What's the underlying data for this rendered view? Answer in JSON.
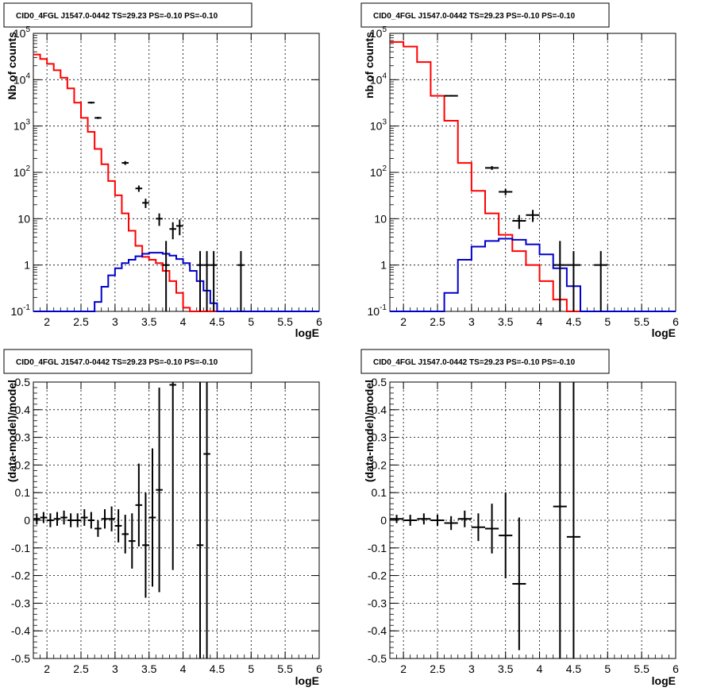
{
  "panels": [
    {
      "title": "CID0_4FGL J1547.0-0442 TS=29.23 PS=-0.10 PS=-0.10",
      "ylabel": "Nb of counts",
      "xlabel": "logE"
    },
    {
      "title": "CID0_4FGL J1547.0-0442 TS=29.23 PS=-0.10 PS=-0.10",
      "ylabel": "nb of counts",
      "xlabel": "logE"
    },
    {
      "title": "CID0_4FGL J1547.0-0442 TS=29.23 PS=-0.10 PS=-0.10",
      "ylabel": "(data-model)/model",
      "xlabel": "logE"
    },
    {
      "title": "CID0_4FGL J1547.0-0442 TS=29.23 PS=-0.10 PS=-0.10",
      "ylabel": "(data-model)/model",
      "xlabel": "logE"
    }
  ],
  "colors": {
    "data": "#000000",
    "total_model": "#ff0000",
    "source_model": "#0000cc",
    "grid": "#000000"
  },
  "chart_data": [
    {
      "type": "line",
      "yscale": "log",
      "xlim": [
        1.8,
        6.0
      ],
      "ylim": [
        0.1,
        100000
      ],
      "grid": true,
      "x_ticks": [
        "2",
        "2.5",
        "3",
        "3.5",
        "4",
        "4.5",
        "5",
        "5.5",
        "6"
      ],
      "y_ticks": [
        "10^-1",
        "1",
        "10",
        "10^2",
        "10^3",
        "10^4",
        "10^5"
      ],
      "bin_edges": [
        1.8,
        1.9,
        2.0,
        2.1,
        2.2,
        2.3,
        2.4,
        2.5,
        2.6,
        2.7,
        2.8,
        2.9,
        3.0,
        3.1,
        3.2,
        3.3,
        3.4,
        3.5,
        3.6,
        3.7,
        3.8,
        3.9,
        4.0,
        4.1,
        4.2,
        4.3,
        4.4,
        4.5,
        4.6,
        4.7,
        4.8,
        4.9,
        5.0,
        5.1,
        5.2,
        5.3,
        5.4,
        5.5,
        5.6,
        5.7,
        5.8,
        5.9,
        6.0
      ],
      "series": [
        {
          "role": "total_model",
          "values": [
            35000,
            28000,
            22000,
            16000,
            11000,
            6500,
            3200,
            1500,
            750,
            320,
            150,
            65,
            32,
            13,
            5.5,
            2.6,
            1.5,
            1.3,
            1.1,
            0.75,
            0.45,
            0.25,
            0.12,
            0,
            0,
            0,
            0,
            0,
            0,
            0,
            0,
            0,
            0,
            0,
            0,
            0,
            0,
            0,
            0,
            0,
            0,
            0
          ]
        },
        {
          "role": "source_model",
          "values": [
            0.1,
            0.1,
            0.1,
            0.1,
            0.1,
            0.1,
            0.1,
            0.1,
            0.1,
            0.16,
            0.34,
            0.6,
            0.85,
            1.1,
            1.3,
            1.55,
            1.75,
            1.85,
            1.85,
            1.75,
            1.6,
            1.35,
            1.1,
            0.75,
            0.45,
            0.28,
            0.15,
            0.1,
            0.1,
            0.1,
            0.1,
            0.1,
            0.1,
            0.1,
            0.1,
            0.1,
            0.1,
            0.1,
            0.1,
            0.1,
            0.1,
            0.1
          ]
        },
        {
          "role": "data",
          "points": [
            {
              "x": 2.65,
              "y": 3200,
              "ylo": 3050,
              "yhi": 3350
            },
            {
              "x": 2.75,
              "y": 1500,
              "ylo": 1420,
              "yhi": 1580
            },
            {
              "x": 3.15,
              "y": 160,
              "ylo": 145,
              "yhi": 175
            },
            {
              "x": 3.35,
              "y": 45,
              "ylo": 38,
              "yhi": 52
            },
            {
              "x": 3.45,
              "y": 22,
              "ylo": 17,
              "yhi": 27
            },
            {
              "x": 3.65,
              "y": 10,
              "ylo": 7,
              "yhi": 13
            },
            {
              "x": 3.75,
              "y": 1,
              "ylo": 0.1,
              "yhi": 3.3
            },
            {
              "x": 3.85,
              "y": 6,
              "ylo": 3.6,
              "yhi": 8.4
            },
            {
              "x": 3.95,
              "y": 7,
              "ylo": 4.4,
              "yhi": 9.6
            },
            {
              "x": 4.25,
              "y": 1,
              "ylo": 0.1,
              "yhi": 2
            },
            {
              "x": 4.35,
              "y": 1,
              "ylo": 0.1,
              "yhi": 2
            },
            {
              "x": 4.45,
              "y": 1,
              "ylo": 0.1,
              "yhi": 2
            },
            {
              "x": 4.85,
              "y": 1,
              "ylo": 0.1,
              "yhi": 2
            }
          ]
        }
      ]
    },
    {
      "type": "line",
      "yscale": "log",
      "xlim": [
        1.8,
        6.0
      ],
      "ylim": [
        0.1,
        100000
      ],
      "grid": true,
      "x_ticks": [
        "2",
        "2.5",
        "3",
        "3.5",
        "4",
        "4.5",
        "5",
        "5.5",
        "6"
      ],
      "y_ticks": [
        "10^-1",
        "1",
        "10",
        "10^2",
        "10^3",
        "10^4",
        "10^5"
      ],
      "bin_edges": [
        1.8,
        2.0,
        2.2,
        2.4,
        2.6,
        2.8,
        3.0,
        3.2,
        3.4,
        3.6,
        3.8,
        4.0,
        4.2,
        4.4,
        4.6,
        4.8,
        5.0,
        5.2,
        5.4,
        5.6,
        5.8,
        6.0
      ],
      "series": [
        {
          "role": "total_model",
          "values": [
            65000,
            52000,
            24000,
            4500,
            1300,
            160,
            40,
            13,
            4.5,
            2.0,
            1.0,
            0.45,
            0.18,
            0,
            0,
            0,
            0,
            0,
            0,
            0,
            0
          ]
        },
        {
          "role": "source_model",
          "values": [
            0.1,
            0.1,
            0.1,
            0.1,
            0.25,
            1.3,
            2.5,
            3.3,
            3.7,
            3.5,
            2.8,
            1.7,
            0.85,
            0.35,
            0.1,
            0.1,
            0.1,
            0.1,
            0.1,
            0.1,
            0.1
          ]
        },
        {
          "role": "data",
          "points": [
            {
              "x": 2.7,
              "y": 4500,
              "ylo": 4350,
              "yhi": 4650
            },
            {
              "x": 3.3,
              "y": 125,
              "ylo": 113,
              "yhi": 137
            },
            {
              "x": 3.5,
              "y": 38,
              "ylo": 32,
              "yhi": 44
            },
            {
              "x": 3.7,
              "y": 9,
              "ylo": 6,
              "yhi": 12
            },
            {
              "x": 3.9,
              "y": 12,
              "ylo": 8.5,
              "yhi": 15.5
            },
            {
              "x": 4.3,
              "y": 1,
              "ylo": 0.1,
              "yhi": 3.3
            },
            {
              "x": 4.5,
              "y": 1,
              "ylo": 0.1,
              "yhi": 2
            },
            {
              "x": 4.9,
              "y": 1,
              "ylo": 0.1,
              "yhi": 2
            }
          ]
        }
      ]
    },
    {
      "type": "scatter",
      "xlim": [
        1.8,
        6.0
      ],
      "ylim": [
        -0.5,
        0.5
      ],
      "grid": true,
      "x_ticks": [
        "2",
        "2.5",
        "3",
        "3.5",
        "4",
        "4.5",
        "5",
        "5.5",
        "6"
      ],
      "y_ticks": [
        "-0.5",
        "-0.4",
        "-0.3",
        "-0.2",
        "-0.1",
        "0",
        "0.1",
        "0.2",
        "0.3",
        "0.4",
        "0.5"
      ],
      "x_halfwidth": 0.05,
      "points": [
        {
          "x": 1.85,
          "y": 0.005,
          "err": 0.02
        },
        {
          "x": 1.95,
          "y": 0.01,
          "err": 0.02
        },
        {
          "x": 2.05,
          "y": 0.0,
          "err": 0.025
        },
        {
          "x": 2.15,
          "y": 0.005,
          "err": 0.025
        },
        {
          "x": 2.25,
          "y": 0.01,
          "err": 0.025
        },
        {
          "x": 2.35,
          "y": 0.0,
          "err": 0.025
        },
        {
          "x": 2.45,
          "y": 0.0,
          "err": 0.025
        },
        {
          "x": 2.55,
          "y": 0.01,
          "err": 0.03
        },
        {
          "x": 2.65,
          "y": 0.0,
          "err": 0.03
        },
        {
          "x": 2.75,
          "y": -0.03,
          "err": 0.03
        },
        {
          "x": 2.85,
          "y": 0.005,
          "err": 0.035
        },
        {
          "x": 2.95,
          "y": 0.005,
          "err": 0.045
        },
        {
          "x": 3.05,
          "y": -0.02,
          "err": 0.06
        },
        {
          "x": 3.15,
          "y": -0.05,
          "err": 0.07
        },
        {
          "x": 3.25,
          "y": -0.075,
          "err": 0.1
        },
        {
          "x": 3.35,
          "y": 0.055,
          "err": 0.15
        },
        {
          "x": 3.45,
          "y": -0.09,
          "err": 0.19
        },
        {
          "x": 3.55,
          "y": 0.01,
          "err": 0.25
        },
        {
          "x": 3.65,
          "y": 0.11,
          "err": 0.37
        },
        {
          "x": 3.85,
          "y": 0.49,
          "err": 0.67
        },
        {
          "x": 4.25,
          "y": -0.09,
          "err": 1.0
        },
        {
          "x": 4.35,
          "y": 0.24,
          "err": 1.0
        }
      ]
    },
    {
      "type": "scatter",
      "xlim": [
        1.8,
        6.0
      ],
      "ylim": [
        -0.5,
        0.5
      ],
      "grid": true,
      "x_ticks": [
        "2",
        "2.5",
        "3",
        "3.5",
        "4",
        "4.5",
        "5",
        "5.5",
        "6"
      ],
      "y_ticks": [
        "-0.5",
        "-0.4",
        "-0.3",
        "-0.2",
        "-0.1",
        "0",
        "0.1",
        "0.2",
        "0.3",
        "0.4",
        "0.5"
      ],
      "x_halfwidth": 0.1,
      "points": [
        {
          "x": 1.9,
          "y": 0.005,
          "err": 0.015
        },
        {
          "x": 2.1,
          "y": 0.0,
          "err": 0.02
        },
        {
          "x": 2.3,
          "y": 0.005,
          "err": 0.02
        },
        {
          "x": 2.5,
          "y": 0.0,
          "err": 0.02
        },
        {
          "x": 2.7,
          "y": -0.01,
          "err": 0.025
        },
        {
          "x": 2.9,
          "y": 0.005,
          "err": 0.03
        },
        {
          "x": 3.1,
          "y": -0.025,
          "err": 0.05
        },
        {
          "x": 3.3,
          "y": -0.03,
          "err": 0.09
        },
        {
          "x": 3.5,
          "y": -0.055,
          "err": 0.155
        },
        {
          "x": 3.7,
          "y": -0.23,
          "err": 0.24
        },
        {
          "x": 4.3,
          "y": 0.05,
          "err": 1.0
        },
        {
          "x": 4.5,
          "y": -0.06,
          "err": 1.0
        }
      ]
    }
  ]
}
